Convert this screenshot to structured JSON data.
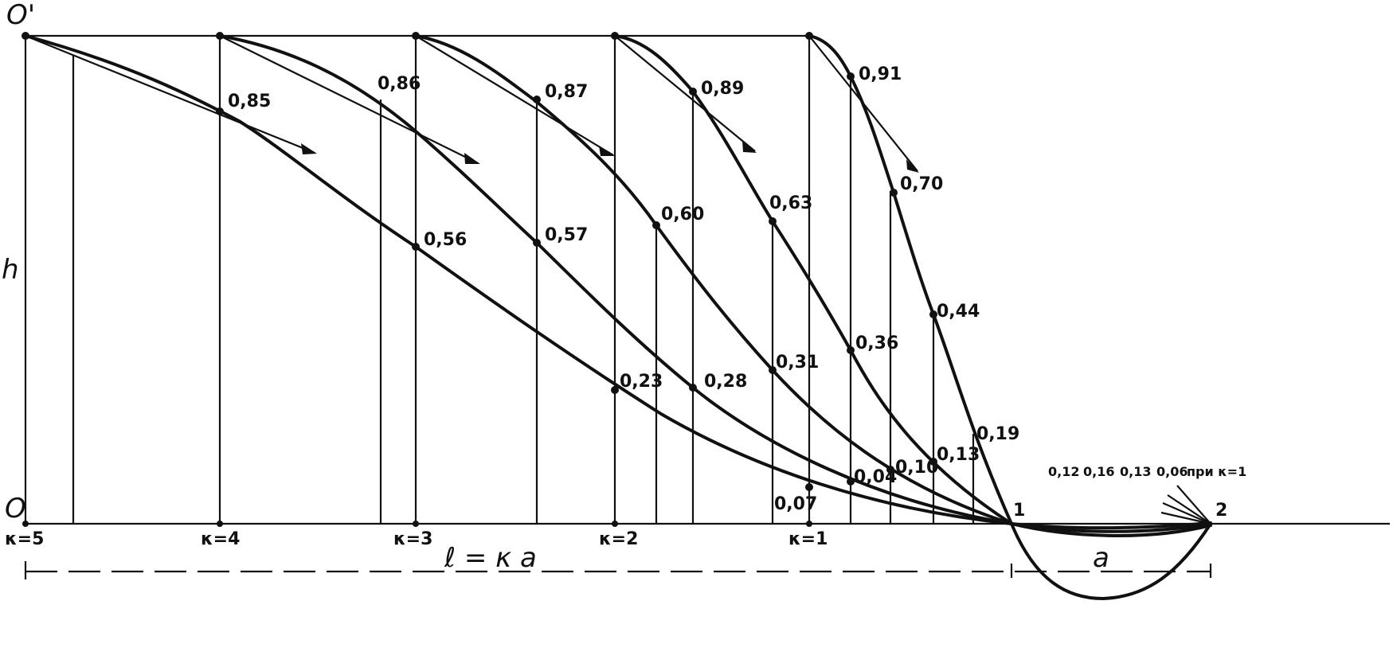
{
  "axes": {
    "top_label": "O'",
    "origin_label": "O",
    "vertical_label": "h",
    "span_label": "ℓ = κ a",
    "span_right_label": "a"
  },
  "k_markers": [
    {
      "label": "κ=5"
    },
    {
      "label": "κ=4"
    },
    {
      "label": "κ=3"
    },
    {
      "label": "κ=2"
    },
    {
      "label": "κ=1"
    }
  ],
  "point_labels": {
    "top": [
      "0,85",
      "0,86",
      "0,87",
      "0,89",
      "0,91",
      "0,70"
    ],
    "middle": [
      "0,56",
      "0,57",
      "0,60",
      "0,63",
      "0,44"
    ],
    "lower": [
      "0,23",
      "0,28",
      "0,31",
      "0,36",
      "0,19"
    ],
    "bottom": [
      "0,07",
      "0,04",
      "0,10",
      "0,13"
    ],
    "right_row": [
      "0,12",
      "0,16",
      "0,13",
      "0,06",
      "при κ=1"
    ]
  },
  "nodes": {
    "one": "1",
    "two": "2"
  }
}
